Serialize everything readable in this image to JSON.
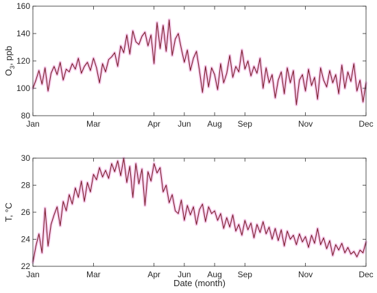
{
  "chart_data": [
    {
      "type": "line",
      "xlabel": "",
      "ylabel": "O",
      "ylabel_sub": "3",
      "ylabel_tail": ", ppb",
      "xlim": [
        0,
        11
      ],
      "ylim": [
        80,
        160
      ],
      "yticks": [
        80,
        100,
        120,
        140,
        160
      ],
      "xticks": [
        {
          "x": 0,
          "label": "Jan"
        },
        {
          "x": 2,
          "label": "Mar"
        },
        {
          "x": 4,
          "label": "Apr"
        },
        {
          "x": 5,
          "label": "Jun"
        },
        {
          "x": 6,
          "label": "Aug"
        },
        {
          "x": 7,
          "label": "Sep"
        },
        {
          "x": 9,
          "label": "Nov"
        },
        {
          "x": 11,
          "label": "Dec"
        }
      ],
      "colors": {
        "line": "#7a1a2a",
        "halo": "#f5c6ea"
      },
      "grid": false,
      "series": [
        {
          "x": [
            0.0,
            0.1,
            0.2,
            0.3,
            0.4,
            0.5,
            0.6,
            0.7,
            0.8,
            0.9,
            1.0,
            1.1,
            1.2,
            1.3,
            1.4,
            1.5,
            1.6,
            1.7,
            1.8,
            1.9,
            2.0,
            2.1,
            2.2,
            2.3,
            2.4,
            2.5,
            2.6,
            2.7,
            2.8,
            2.9,
            3.0,
            3.1,
            3.2,
            3.3,
            3.4,
            3.5,
            3.6,
            3.7,
            3.8,
            3.9,
            4.0,
            4.1,
            4.2,
            4.3,
            4.4,
            4.5,
            4.6,
            4.7,
            4.8,
            4.9,
            5.0,
            5.1,
            5.2,
            5.3,
            5.4,
            5.5,
            5.6,
            5.7,
            5.8,
            5.9,
            6.0,
            6.1,
            6.2,
            6.3,
            6.4,
            6.5,
            6.6,
            6.7,
            6.8,
            6.9,
            7.0,
            7.1,
            7.2,
            7.3,
            7.4,
            7.5,
            7.6,
            7.7,
            7.8,
            7.9,
            8.0,
            8.1,
            8.2,
            8.3,
            8.4,
            8.5,
            8.6,
            8.7,
            8.8,
            8.9,
            9.0,
            9.1,
            9.2,
            9.3,
            9.4,
            9.5,
            9.6,
            9.7,
            9.8,
            9.9,
            10.0,
            10.1,
            10.2,
            10.3,
            10.4,
            10.5,
            10.6,
            10.7,
            10.8,
            10.9,
            11.0
          ],
          "values": [
            100,
            106,
            113,
            103,
            115,
            98,
            111,
            116,
            110,
            119,
            106,
            114,
            112,
            118,
            114,
            122,
            111,
            116,
            119,
            113,
            122,
            115,
            104,
            118,
            112,
            121,
            123,
            126,
            116,
            131,
            126,
            139,
            125,
            142,
            134,
            132,
            138,
            141,
            131,
            139,
            118,
            148,
            129,
            146,
            127,
            150,
            124,
            136,
            140,
            129,
            119,
            128,
            113,
            122,
            127,
            113,
            97,
            116,
            101,
            115,
            110,
            99,
            118,
            104,
            111,
            124,
            108,
            116,
            112,
            128,
            114,
            120,
            109,
            116,
            111,
            122,
            100,
            115,
            104,
            110,
            93,
            106,
            112,
            96,
            115,
            104,
            113,
            88,
            106,
            110,
            98,
            114,
            102,
            108,
            92,
            115,
            106,
            101,
            113,
            104,
            110,
            96,
            117,
            100,
            112,
            105,
            118,
            98,
            106,
            90,
            104
          ]
        }
      ]
    },
    {
      "type": "line",
      "xlabel": "Date (month)",
      "ylabel": "T, °C",
      "xlim": [
        0,
        11
      ],
      "ylim": [
        22,
        30
      ],
      "yticks": [
        22,
        24,
        26,
        28,
        30
      ],
      "xticks": [
        {
          "x": 0,
          "label": "Jan"
        },
        {
          "x": 2,
          "label": "Mar"
        },
        {
          "x": 4,
          "label": "Apr"
        },
        {
          "x": 5,
          "label": "Jun"
        },
        {
          "x": 6,
          "label": "Aug"
        },
        {
          "x": 7,
          "label": "Sep"
        },
        {
          "x": 9,
          "label": "Nov"
        },
        {
          "x": 11,
          "label": "Dec"
        }
      ],
      "colors": {
        "line": "#7a1a2a",
        "halo": "#f5c6ea"
      },
      "grid": false,
      "series": [
        {
          "x": [
            0.0,
            0.1,
            0.2,
            0.3,
            0.4,
            0.5,
            0.6,
            0.7,
            0.8,
            0.9,
            1.0,
            1.1,
            1.2,
            1.3,
            1.4,
            1.5,
            1.6,
            1.7,
            1.8,
            1.9,
            2.0,
            2.1,
            2.2,
            2.3,
            2.4,
            2.5,
            2.6,
            2.7,
            2.8,
            2.9,
            3.0,
            3.1,
            3.2,
            3.3,
            3.4,
            3.5,
            3.6,
            3.7,
            3.8,
            3.9,
            4.0,
            4.1,
            4.2,
            4.3,
            4.4,
            4.5,
            4.6,
            4.7,
            4.8,
            4.9,
            5.0,
            5.1,
            5.2,
            5.3,
            5.4,
            5.5,
            5.6,
            5.7,
            5.8,
            5.9,
            6.0,
            6.1,
            6.2,
            6.3,
            6.4,
            6.5,
            6.6,
            6.7,
            6.8,
            6.9,
            7.0,
            7.1,
            7.2,
            7.3,
            7.4,
            7.5,
            7.6,
            7.7,
            7.8,
            7.9,
            8.0,
            8.1,
            8.2,
            8.3,
            8.4,
            8.5,
            8.6,
            8.7,
            8.8,
            8.9,
            9.0,
            9.1,
            9.2,
            9.3,
            9.4,
            9.5,
            9.6,
            9.7,
            9.8,
            9.9,
            10.0,
            10.1,
            10.2,
            10.3,
            10.4,
            10.5,
            10.6,
            10.7,
            10.8,
            10.9,
            11.0
          ],
          "values": [
            22.3,
            23.5,
            24.4,
            23.0,
            26.3,
            23.5,
            25.1,
            25.8,
            26.4,
            25.0,
            26.8,
            26.1,
            27.3,
            26.6,
            27.8,
            27.1,
            28.3,
            26.8,
            28.2,
            27.5,
            28.8,
            28.4,
            29.3,
            28.6,
            29.1,
            28.5,
            29.6,
            29.0,
            29.8,
            28.7,
            30.0,
            28.2,
            29.4,
            27.1,
            29.6,
            28.1,
            29.2,
            26.5,
            29.0,
            28.3,
            29.6,
            28.9,
            29.3,
            27.5,
            28.0,
            26.7,
            27.3,
            26.1,
            25.9,
            26.9,
            25.4,
            26.5,
            25.8,
            26.4,
            25.1,
            26.2,
            26.6,
            25.3,
            26.4,
            25.9,
            26.1,
            25.4,
            25.9,
            24.8,
            25.6,
            24.9,
            25.8,
            24.6,
            25.1,
            24.3,
            25.4,
            24.7,
            25.2,
            24.1,
            25.1,
            24.5,
            25.3,
            24.4,
            24.9,
            24.0,
            24.8,
            23.9,
            24.7,
            23.5,
            24.6,
            24.0,
            24.3,
            23.6,
            24.4,
            23.8,
            24.2,
            23.4,
            24.3,
            23.7,
            24.8,
            23.6,
            24.1,
            23.3,
            23.9,
            22.8,
            23.6,
            23.2,
            23.7,
            23.0,
            23.4,
            22.9,
            23.1,
            22.7,
            23.2,
            23.0,
            23.8
          ]
        }
      ]
    }
  ]
}
